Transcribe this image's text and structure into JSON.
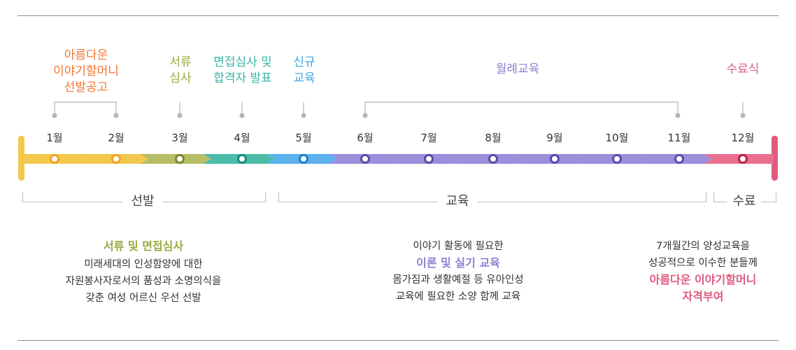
{
  "colors": {
    "orange": "#f4762f",
    "olive": "#9ca83f",
    "teal": "#3bb5a5",
    "blue": "#3ea6e8",
    "purple": "#8c7fd2",
    "pink": "#e05a7e",
    "yellow": "#f2c94c"
  },
  "phases": {
    "recruitment": [
      "아름다운",
      "이야기할머니",
      "선발공고"
    ],
    "document_review": [
      "서류",
      "심사"
    ],
    "interview": [
      "면접심사 및",
      "합격자 발표"
    ],
    "new_training": [
      "신규",
      "교육"
    ],
    "monthly_training": "월례교육",
    "graduation": "수료식"
  },
  "months": [
    "1월",
    "2월",
    "3월",
    "4월",
    "5월",
    "6월",
    "7월",
    "8월",
    "9월",
    "10월",
    "11월",
    "12월"
  ],
  "groups": {
    "selection": "선발",
    "education": "교육",
    "completion": "수료"
  },
  "descriptions": {
    "selection": {
      "highlight": "서류 및 면접심사",
      "lines": [
        "미래세대의 인성함양에 대한",
        "자원봉사자로서의 품성과 소명의식을",
        "갖춘 여성 어르신 우선 선발"
      ]
    },
    "education": {
      "line1": "이야기 활동에 필요한",
      "highlight": "이론 및 실기 교육",
      "lines": [
        "몸가짐과 생활예절 등 유아인성",
        "교육에 필요한 소양 함께 교육"
      ]
    },
    "completion": {
      "lines": [
        "7개월간의 양성교육을",
        "성공적으로 이수한 분들께"
      ],
      "highlight1": "아름다운 이야기할머니",
      "highlight2": "자격부여"
    }
  }
}
